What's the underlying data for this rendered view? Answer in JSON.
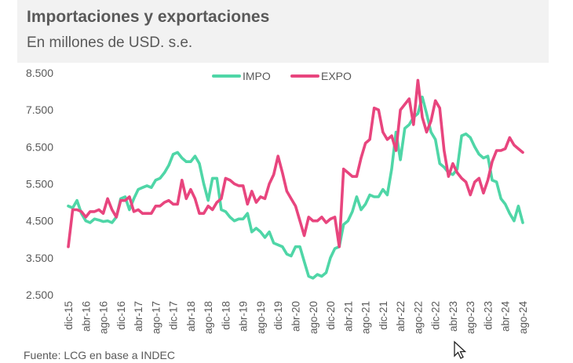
{
  "chart_data": {
    "type": "line",
    "title": "Importaciones y exportaciones",
    "subtitle": "En millones de USD. s.e.",
    "xlabel": "",
    "ylabel": "",
    "ylim": [
      2500,
      8500
    ],
    "yticks": [
      "2.500",
      "3.500",
      "4.500",
      "5.500",
      "6.500",
      "7.500",
      "8.500"
    ],
    "ytick_values": [
      2500,
      3500,
      4500,
      5500,
      6500,
      7500,
      8500
    ],
    "x_start": "dic-15",
    "x_end": "ago-24",
    "x_frequency": "monthly",
    "xtick_labels": [
      "dic-15",
      "abr-16",
      "ago-16",
      "dic-16",
      "abr-17",
      "ago-17",
      "dic-17",
      "abr-18",
      "ago-18",
      "dic-18",
      "abr-19",
      "ago-19",
      "dic-19",
      "abr-20",
      "ago-20",
      "dic-20",
      "abr-21",
      "ago-21",
      "dic-21",
      "abr-22",
      "ago-22",
      "dic-22",
      "abr-23",
      "ago-23",
      "dic-23",
      "abr-24",
      "ago-24"
    ],
    "grid": false,
    "legend_position": "top-center",
    "series": [
      {
        "name": "IMPO",
        "color": "#4fd6a7",
        "values": [
          4900,
          4850,
          5050,
          4700,
          4500,
          4450,
          4550,
          4520,
          4480,
          4500,
          4450,
          4600,
          5100,
          5150,
          4800,
          5100,
          5350,
          5400,
          5450,
          5400,
          5600,
          5650,
          5800,
          6000,
          6300,
          6350,
          6200,
          6100,
          6100,
          6250,
          6050,
          5500,
          5050,
          5650,
          5650,
          4800,
          4750,
          4600,
          4500,
          4550,
          4550,
          4700,
          4200,
          4300,
          4200,
          4050,
          4200,
          3900,
          3850,
          3800,
          3600,
          3550,
          3800,
          3800,
          3400,
          3000,
          2950,
          3050,
          3000,
          3100,
          3500,
          3750,
          3800,
          4400,
          4500,
          4750,
          5150,
          4800,
          4950,
          5200,
          5150,
          5150,
          5350,
          5200,
          5900,
          6900,
          6150,
          7000,
          7100,
          7300,
          7400,
          7850,
          7400,
          6900,
          6700,
          6050,
          5950,
          5800,
          5750,
          5900,
          6800,
          6850,
          6750,
          6500,
          6300,
          6200,
          6250,
          5600,
          5550,
          5100,
          4950,
          4700,
          4500,
          4900,
          4450
        ]
      },
      {
        "name": "EXPO",
        "color": "#e8457e",
        "values": [
          3800,
          4800,
          4800,
          4750,
          4600,
          4750,
          4750,
          4800,
          4700,
          5100,
          4800,
          4600,
          5050,
          5050,
          5150,
          4750,
          4800,
          4700,
          4700,
          4700,
          4900,
          4900,
          5000,
          5050,
          4950,
          4950,
          5600,
          5100,
          5350,
          5100,
          4700,
          4700,
          4900,
          4800,
          5000,
          5100,
          5650,
          5600,
          5500,
          5450,
          5450,
          4950,
          5300,
          5000,
          5150,
          5100,
          5500,
          5750,
          6250,
          5800,
          5300,
          5100,
          4900,
          4500,
          4100,
          4600,
          4500,
          4500,
          4600,
          4450,
          4550,
          4600,
          3800,
          5900,
          5800,
          5700,
          5700,
          6200,
          6600,
          6700,
          7550,
          7500,
          6900,
          6700,
          6800,
          6400,
          7500,
          7650,
          7800,
          7100,
          8300,
          7300,
          6900,
          7200,
          7750,
          7550,
          6400,
          5700,
          6050,
          5800,
          5650,
          5550,
          5200,
          5550,
          5650,
          5250,
          5600,
          6100,
          6400,
          6400,
          6450,
          6750,
          6550,
          6450,
          6350
        ]
      }
    ]
  },
  "source": "Fuente: LCG en base a INDEC"
}
